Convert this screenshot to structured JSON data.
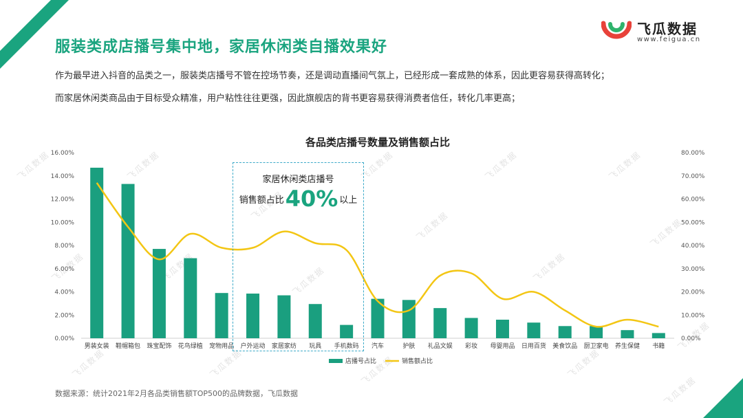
{
  "title": "服装类成店播号集中地，家居休闲类自播效果好",
  "paragraphs": [
    "作为最早进入抖音的品类之一，服装类店播号不管在控场节奏，还是调动直播间气氛上，已经形成一套成熟的体系，因此更容易获得高转化；",
    "而家居休闲类商品由于目标受众精准，用户粘性往往更强，因此旗舰店的背书更容易获得消费者信任，转化几率更高；"
  ],
  "logo": {
    "name": "飞瓜数据",
    "url": "www.feigua.cn"
  },
  "source": "数据来源：统计2021年2月各品类销售额TOP500的品牌数据，飞瓜数据",
  "watermark": "飞瓜数据",
  "callout": {
    "line1": "家居休闲类店播号",
    "prefix": "销售额占比",
    "big": "40%",
    "suffix": "以上"
  },
  "colors": {
    "accent": "#1aa47f",
    "bar": "#1a9f7f",
    "line": "#f3c614",
    "callout_border": "#3aa9c8"
  },
  "chart_data": {
    "type": "bar+line",
    "title": "各品类店播号数量及销售额占比",
    "categories": [
      "男装女装",
      "鞋帽箱包",
      "珠宝配饰",
      "花鸟绿植",
      "宠物用品",
      "户外运动",
      "家居家纺",
      "玩具",
      "手机数码",
      "汽车",
      "护肤",
      "礼品文娱",
      "彩妆",
      "母婴用品",
      "日用百货",
      "美食饮品",
      "厨卫家电",
      "养生保健",
      "书籍"
    ],
    "series": [
      {
        "name": "店播号占比",
        "type": "bar",
        "axis": "left",
        "values": [
          14.7,
          13.3,
          7.7,
          6.9,
          3.9,
          3.85,
          3.7,
          2.95,
          1.15,
          3.4,
          3.3,
          2.6,
          1.75,
          1.6,
          1.35,
          1.05,
          1.05,
          0.7,
          0.45
        ]
      },
      {
        "name": "销售额占比",
        "type": "line",
        "axis": "right",
        "values": [
          67,
          48,
          34,
          45,
          39,
          39,
          46,
          41,
          38,
          16,
          12,
          27,
          28,
          17,
          20,
          12,
          5,
          8,
          5
        ]
      }
    ],
    "y_left": {
      "min": 0,
      "max": 16,
      "step": 2,
      "ticks": [
        "0.00%",
        "2.00%",
        "4.00%",
        "6.00%",
        "8.00%",
        "10.00%",
        "12.00%",
        "14.00%",
        "16.00%"
      ]
    },
    "y_right": {
      "min": 0,
      "max": 80,
      "step": 10,
      "ticks": [
        "0.00%",
        "10.00%",
        "20.00%",
        "30.00%",
        "40.00%",
        "50.00%",
        "60.00%",
        "70.00%",
        "80.00%"
      ]
    },
    "grid": false,
    "legend_position": "bottom"
  }
}
